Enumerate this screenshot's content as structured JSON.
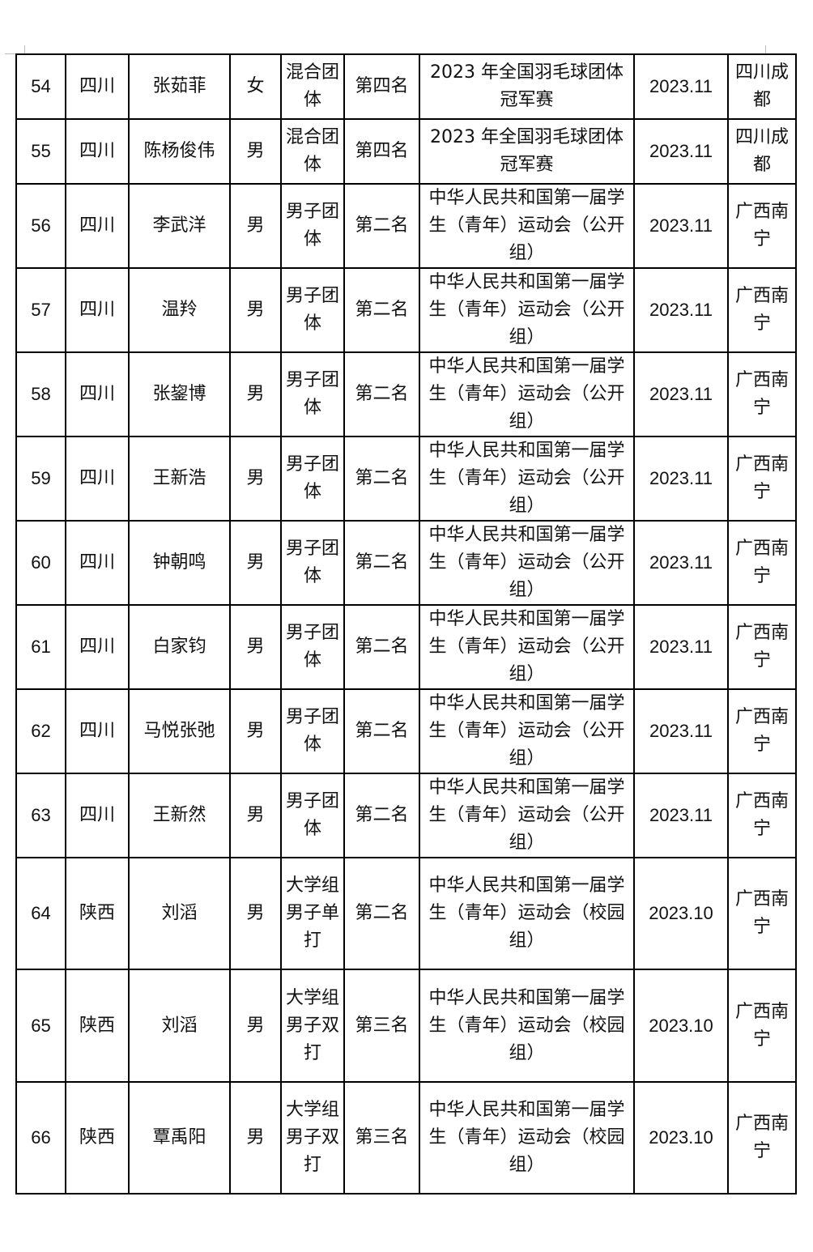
{
  "rows": [
    {
      "no": "54",
      "province": "四川",
      "name": "张茹菲",
      "gender": "女",
      "event": "混合团体",
      "rank": "第四名",
      "competition": "2023 年全国羽毛球团体冠军赛",
      "date": "2023.11",
      "location": "四川成都"
    },
    {
      "no": "55",
      "province": "四川",
      "name": "陈杨俊伟",
      "gender": "男",
      "event": "混合团体",
      "rank": "第四名",
      "competition": "2023 年全国羽毛球团体冠军赛",
      "date": "2023.11",
      "location": "四川成都"
    },
    {
      "no": "56",
      "province": "四川",
      "name": "李武洋",
      "gender": "男",
      "event": "男子团体",
      "rank": "第二名",
      "competition": "中华人民共和国第一届学生（青年）运动会（公开组）",
      "date": "2023.11",
      "location": "广西南宁"
    },
    {
      "no": "57",
      "province": "四川",
      "name": "温羚",
      "gender": "男",
      "event": "男子团体",
      "rank": "第二名",
      "competition": "中华人民共和国第一届学生（青年）运动会（公开组）",
      "date": "2023.11",
      "location": "广西南宁"
    },
    {
      "no": "58",
      "province": "四川",
      "name": "张鋆博",
      "gender": "男",
      "event": "男子团体",
      "rank": "第二名",
      "competition": "中华人民共和国第一届学生（青年）运动会（公开组）",
      "date": "2023.11",
      "location": "广西南宁"
    },
    {
      "no": "59",
      "province": "四川",
      "name": "王新浩",
      "gender": "男",
      "event": "男子团体",
      "rank": "第二名",
      "competition": "中华人民共和国第一届学生（青年）运动会（公开组）",
      "date": "2023.11",
      "location": "广西南宁"
    },
    {
      "no": "60",
      "province": "四川",
      "name": "钟朝鸣",
      "gender": "男",
      "event": "男子团体",
      "rank": "第二名",
      "competition": "中华人民共和国第一届学生（青年）运动会（公开组）",
      "date": "2023.11",
      "location": "广西南宁"
    },
    {
      "no": "61",
      "province": "四川",
      "name": "白家钧",
      "gender": "男",
      "event": "男子团体",
      "rank": "第二名",
      "competition": "中华人民共和国第一届学生（青年）运动会（公开组）",
      "date": "2023.11",
      "location": "广西南宁"
    },
    {
      "no": "62",
      "province": "四川",
      "name": "马悦张弛",
      "gender": "男",
      "event": "男子团体",
      "rank": "第二名",
      "competition": "中华人民共和国第一届学生（青年）运动会（公开组）",
      "date": "2023.11",
      "location": "广西南宁"
    },
    {
      "no": "63",
      "province": "四川",
      "name": "王新然",
      "gender": "男",
      "event": "男子团体",
      "rank": "第二名",
      "competition": "中华人民共和国第一届学生（青年）运动会（公开组）",
      "date": "2023.11",
      "location": "广西南宁"
    },
    {
      "no": "64",
      "province": "陕西",
      "name": "刘滔",
      "gender": "男",
      "event": "大学组男子单打",
      "rank": "第二名",
      "competition": "中华人民共和国第一届学生（青年）运动会（校园组）",
      "date": "2023.10",
      "location": "广西南宁"
    },
    {
      "no": "65",
      "province": "陕西",
      "name": "刘滔",
      "gender": "男",
      "event": "大学组男子双打",
      "rank": "第三名",
      "competition": "中华人民共和国第一届学生（青年）运动会（校园组）",
      "date": "2023.10",
      "location": "广西南宁"
    },
    {
      "no": "66",
      "province": "陕西",
      "name": "覃禹阳",
      "gender": "男",
      "event": "大学组男子双打",
      "rank": "第三名",
      "competition": "中华人民共和国第一届学生（青年）运动会（校园组）",
      "date": "2023.10",
      "location": "广西南宁"
    }
  ]
}
